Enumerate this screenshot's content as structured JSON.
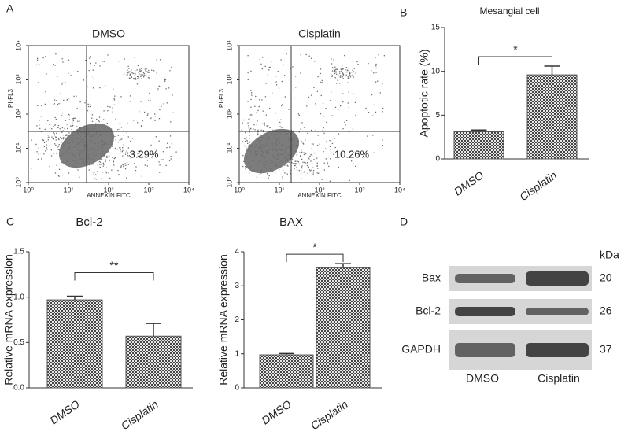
{
  "chart_data": [
    {
      "type": "scatter",
      "panel_label": "A",
      "title": "DMSO",
      "x_label": "ANNEXIN FITC",
      "y_label": "PI-FL3",
      "log_scale": true,
      "xlim": [
        1,
        10000
      ],
      "ylim": [
        1,
        10000
      ],
      "xticks": [
        {
          "value": 1,
          "label": "10⁰"
        },
        {
          "value": 10,
          "label": "10¹"
        },
        {
          "value": 100,
          "label": "10²"
        },
        {
          "value": 1000,
          "label": "10³"
        },
        {
          "value": 10000,
          "label": "10⁴"
        }
      ],
      "yticks": [
        {
          "value": 1,
          "label": "10⁰"
        },
        {
          "value": 10,
          "label": "10¹"
        },
        {
          "value": 100,
          "label": "10²"
        },
        {
          "value": 1000,
          "label": "10³"
        },
        {
          "value": 10000,
          "label": "10⁴"
        }
      ],
      "annotation": "3.29%",
      "color": "#6e6e6e"
    },
    {
      "type": "scatter",
      "title": "Cisplatin",
      "x_label": "ANNEXIN FITC",
      "y_label": "PI-FL3",
      "log_scale": true,
      "xlim": [
        1,
        10000
      ],
      "ylim": [
        1,
        10000
      ],
      "xticks": [
        {
          "value": 1,
          "label": "10⁰"
        },
        {
          "value": 10,
          "label": "10¹"
        },
        {
          "value": 100,
          "label": "10²"
        },
        {
          "value": 1000,
          "label": "10³"
        },
        {
          "value": 10000,
          "label": "10⁴"
        }
      ],
      "yticks": [
        {
          "value": 1,
          "label": "10⁰"
        },
        {
          "value": 10,
          "label": "10¹"
        },
        {
          "value": 100,
          "label": "10²"
        },
        {
          "value": 1000,
          "label": "10³"
        },
        {
          "value": 10000,
          "label": "10⁴"
        }
      ],
      "annotation": "10.26%",
      "color": "#6e6e6e"
    },
    {
      "type": "bar",
      "panel_label": "B",
      "title": "Mesangial cell",
      "y_label": "Apoptotic rate (%)",
      "categories": [
        "DMSO",
        "Cisplatin"
      ],
      "values": [
        3.1,
        9.6
      ],
      "errors": [
        0.2,
        1.0
      ],
      "ylim": [
        0,
        15
      ],
      "yticks": [
        0,
        5,
        10,
        15
      ],
      "significance": "*",
      "color": "#555555"
    },
    {
      "type": "bar",
      "panel_label": "C",
      "title": "Bcl-2",
      "y_label": "Relative mRNA expression",
      "categories": [
        "DMSO",
        "Cisplatin"
      ],
      "values": [
        0.97,
        0.57
      ],
      "errors": [
        0.04,
        0.14
      ],
      "ylim": [
        0,
        1.5
      ],
      "yticks": [
        {
          "value": 0,
          "label": "0.0"
        },
        {
          "value": 0.5,
          "label": "0.5"
        },
        {
          "value": 1,
          "label": "1.0"
        },
        {
          "value": 1.5,
          "label": "1.5"
        }
      ],
      "significance": "**",
      "color": "#555555"
    },
    {
      "type": "bar",
      "title": "BAX",
      "y_label": "Relative mRNA expression",
      "categories": [
        "DMSO",
        "Cisplatin"
      ],
      "values": [
        0.97,
        3.53
      ],
      "errors": [
        0.04,
        0.12
      ],
      "ylim": [
        0,
        4
      ],
      "yticks": [
        0,
        1,
        2,
        3,
        4
      ],
      "significance": "*",
      "color": "#555555"
    }
  ],
  "western_blot": {
    "panel_label": "D",
    "unit_label": "kDa",
    "rows": [
      {
        "protein": "Bax",
        "kda": 20
      },
      {
        "protein": "Bcl-2",
        "kda": 26
      },
      {
        "protein": "GAPDH",
        "kda": 37
      }
    ],
    "lanes": [
      "DMSO",
      "Cisplatin"
    ]
  }
}
